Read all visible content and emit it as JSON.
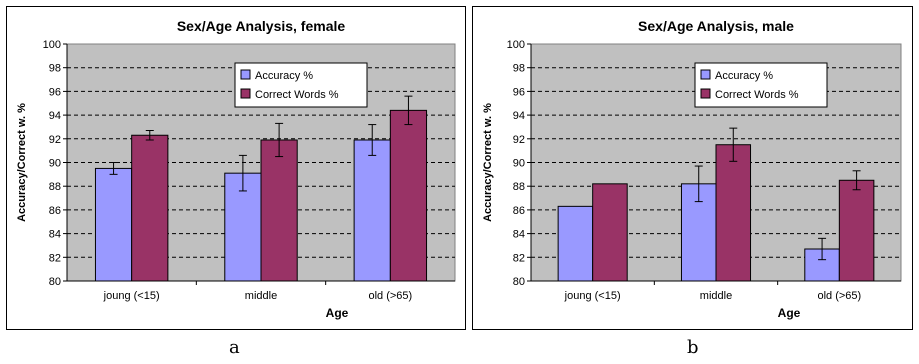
{
  "panel_labels": [
    "a",
    "b"
  ],
  "chart_data": [
    {
      "type": "bar",
      "title": "Sex/Age Analysis, female",
      "xlabel": "Age",
      "ylabel": "Accuracy/Correct w. %",
      "ylim": [
        80,
        100
      ],
      "ytick_step": 2,
      "grid": true,
      "legend_placement": "top-center",
      "categories": [
        "joung (<15)",
        "middle",
        "old (>65)"
      ],
      "series": [
        {
          "name": "Accuracy %",
          "color": "#9999ff",
          "values": [
            89.5,
            89.1,
            91.9
          ],
          "err": [
            0.5,
            1.5,
            1.3
          ]
        },
        {
          "name": "Correct Words %",
          "color": "#993366",
          "values": [
            92.3,
            91.9,
            94.4
          ],
          "err": [
            0.4,
            1.4,
            1.2
          ]
        }
      ]
    },
    {
      "type": "bar",
      "title": "Sex/Age Analysis, male",
      "xlabel": "Age",
      "ylabel": "Accuracy/Correct w. %",
      "ylim": [
        80,
        100
      ],
      "ytick_step": 2,
      "grid": true,
      "legend_placement": "top-center",
      "categories": [
        "joung (<15)",
        "middle",
        "old (>65)"
      ],
      "series": [
        {
          "name": "Accuracy %",
          "color": "#9999ff",
          "values": [
            86.3,
            88.2,
            82.7
          ],
          "err": [
            0,
            1.5,
            0.9
          ]
        },
        {
          "name": "Correct Words %",
          "color": "#993366",
          "values": [
            88.2,
            91.5,
            88.5
          ],
          "err": [
            0,
            1.4,
            0.8
          ]
        }
      ]
    }
  ]
}
